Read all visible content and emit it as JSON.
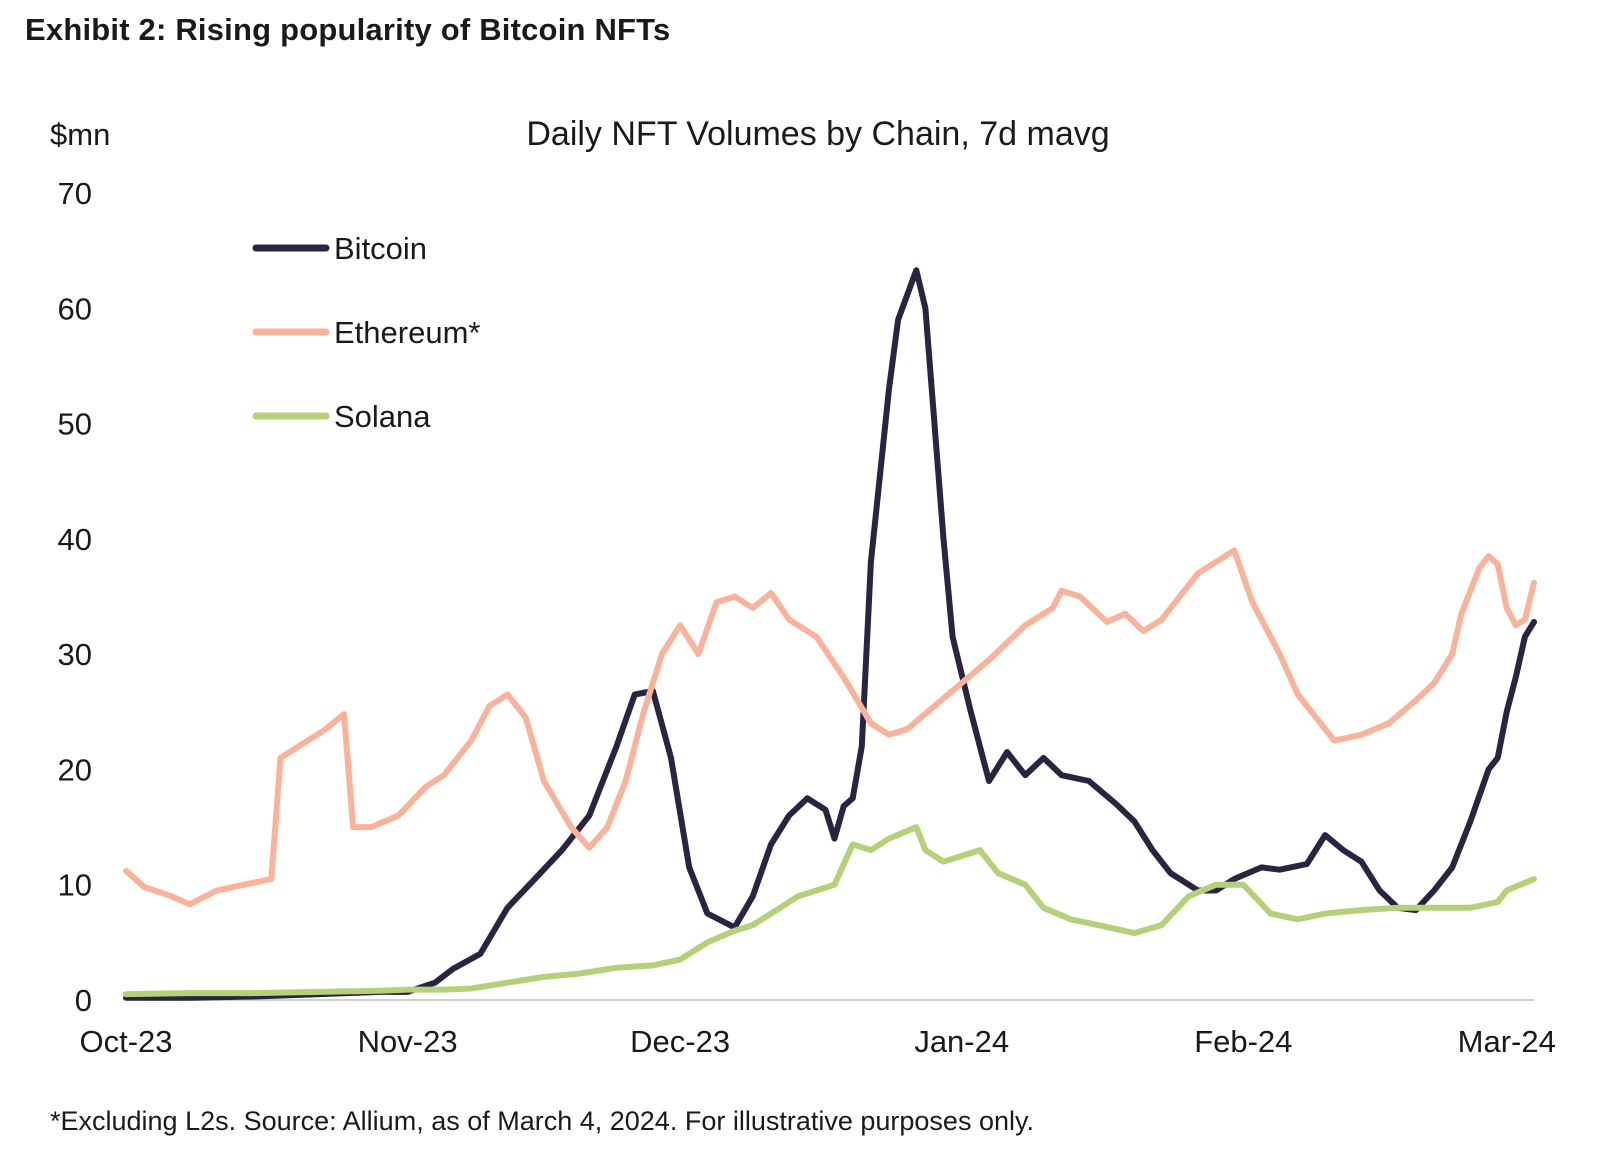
{
  "exhibit_title": "Exhibit 2: Rising popularity of Bitcoin NFTs",
  "footnote": "*Excluding L2s. Source: Allium, as of March 4, 2024. For illustrative purposes only.",
  "chart_data": {
    "type": "line",
    "title": "Daily NFT Volumes by Chain, 7d mavg",
    "ylabel": "$mn",
    "xlabel": "",
    "ylim": [
      0,
      70
    ],
    "yticks": [
      0,
      10,
      20,
      30,
      40,
      50,
      60,
      70
    ],
    "xlim": [
      "2023-10-01",
      "2024-03-04"
    ],
    "xticks": [
      {
        "date": "2023-10-01",
        "label": "Oct-23"
      },
      {
        "date": "2023-11-01",
        "label": "Nov-23"
      },
      {
        "date": "2023-12-01",
        "label": "Dec-23"
      },
      {
        "date": "2024-01-01",
        "label": "Jan-24"
      },
      {
        "date": "2024-02-01",
        "label": "Feb-24"
      },
      {
        "date": "2024-03-01",
        "label": "Mar-24"
      }
    ],
    "grid": false,
    "legend": "top-left",
    "series": [
      {
        "name": "Bitcoin",
        "color": "#2a2440",
        "points": [
          [
            "2023-10-01",
            0.2
          ],
          [
            "2023-10-08",
            0.2
          ],
          [
            "2023-10-15",
            0.3
          ],
          [
            "2023-10-22",
            0.5
          ],
          [
            "2023-10-29",
            0.7
          ],
          [
            "2023-11-01",
            0.7
          ],
          [
            "2023-11-04",
            1.5
          ],
          [
            "2023-11-06",
            2.7
          ],
          [
            "2023-11-09",
            4.0
          ],
          [
            "2023-11-12",
            8.0
          ],
          [
            "2023-11-15",
            10.5
          ],
          [
            "2023-11-18",
            13.0
          ],
          [
            "2023-11-21",
            16.0
          ],
          [
            "2023-11-24",
            22.0
          ],
          [
            "2023-11-26",
            26.5
          ],
          [
            "2023-11-28",
            26.8
          ],
          [
            "2023-11-30",
            21.0
          ],
          [
            "2023-12-02",
            11.5
          ],
          [
            "2023-12-04",
            7.5
          ],
          [
            "2023-12-07",
            6.3
          ],
          [
            "2023-12-09",
            9.0
          ],
          [
            "2023-12-11",
            13.5
          ],
          [
            "2023-12-13",
            16.0
          ],
          [
            "2023-12-15",
            17.5
          ],
          [
            "2023-12-17",
            16.5
          ],
          [
            "2023-12-18",
            14.0
          ],
          [
            "2023-12-19",
            16.8
          ],
          [
            "2023-12-20",
            17.5
          ],
          [
            "2023-12-21",
            22.0
          ],
          [
            "2023-12-22",
            38.0
          ],
          [
            "2023-12-24",
            53.0
          ],
          [
            "2023-12-25",
            59.0
          ],
          [
            "2023-12-27",
            63.3
          ],
          [
            "2023-12-28",
            60.0
          ],
          [
            "2023-12-30",
            40.0
          ],
          [
            "2023-12-31",
            31.5
          ],
          [
            "2024-01-02",
            25.0
          ],
          [
            "2024-01-04",
            19.0
          ],
          [
            "2024-01-06",
            21.5
          ],
          [
            "2024-01-08",
            19.5
          ],
          [
            "2024-01-10",
            21.0
          ],
          [
            "2024-01-12",
            19.5
          ],
          [
            "2024-01-15",
            19.0
          ],
          [
            "2024-01-18",
            17.0
          ],
          [
            "2024-01-20",
            15.5
          ],
          [
            "2024-01-22",
            13.0
          ],
          [
            "2024-01-24",
            11.0
          ],
          [
            "2024-01-27",
            9.5
          ],
          [
            "2024-01-29",
            9.5
          ],
          [
            "2024-01-31",
            10.5
          ],
          [
            "2024-02-03",
            11.5
          ],
          [
            "2024-02-05",
            11.3
          ],
          [
            "2024-02-08",
            11.8
          ],
          [
            "2024-02-10",
            14.3
          ],
          [
            "2024-02-12",
            13.0
          ],
          [
            "2024-02-14",
            12.0
          ],
          [
            "2024-02-16",
            9.5
          ],
          [
            "2024-02-18",
            8.0
          ],
          [
            "2024-02-20",
            7.8
          ],
          [
            "2024-02-22",
            9.5
          ],
          [
            "2024-02-24",
            11.5
          ],
          [
            "2024-02-26",
            15.5
          ],
          [
            "2024-02-28",
            20.0
          ],
          [
            "2024-02-29",
            21.0
          ],
          [
            "2024-03-01",
            25.0
          ],
          [
            "2024-03-02",
            28.0
          ],
          [
            "2024-03-03",
            31.5
          ],
          [
            "2024-03-04",
            32.8
          ]
        ]
      },
      {
        "name": "Ethereum*",
        "color": "#f9b39b",
        "points": [
          [
            "2023-10-01",
            11.2
          ],
          [
            "2023-10-03",
            9.8
          ],
          [
            "2023-10-06",
            9.0
          ],
          [
            "2023-10-08",
            8.3
          ],
          [
            "2023-10-11",
            9.5
          ],
          [
            "2023-10-14",
            10.0
          ],
          [
            "2023-10-17",
            10.5
          ],
          [
            "2023-10-18",
            21.0
          ],
          [
            "2023-10-20",
            22.0
          ],
          [
            "2023-10-23",
            23.5
          ],
          [
            "2023-10-25",
            24.8
          ],
          [
            "2023-10-26",
            15.0
          ],
          [
            "2023-10-28",
            15.0
          ],
          [
            "2023-10-31",
            16.0
          ],
          [
            "2023-11-03",
            18.5
          ],
          [
            "2023-11-05",
            19.5
          ],
          [
            "2023-11-08",
            22.5
          ],
          [
            "2023-11-10",
            25.5
          ],
          [
            "2023-11-12",
            26.5
          ],
          [
            "2023-11-14",
            24.5
          ],
          [
            "2023-11-16",
            19.0
          ],
          [
            "2023-11-19",
            15.0
          ],
          [
            "2023-11-21",
            13.2
          ],
          [
            "2023-11-23",
            15.0
          ],
          [
            "2023-11-25",
            19.0
          ],
          [
            "2023-11-27",
            25.0
          ],
          [
            "2023-11-29",
            30.0
          ],
          [
            "2023-12-01",
            32.5
          ],
          [
            "2023-12-03",
            30.0
          ],
          [
            "2023-12-05",
            34.5
          ],
          [
            "2023-12-07",
            35.0
          ],
          [
            "2023-12-09",
            34.0
          ],
          [
            "2023-12-11",
            35.3
          ],
          [
            "2023-12-13",
            33.0
          ],
          [
            "2023-12-16",
            31.5
          ],
          [
            "2023-12-19",
            28.0
          ],
          [
            "2023-12-22",
            24.0
          ],
          [
            "2023-12-24",
            23.0
          ],
          [
            "2023-12-26",
            23.5
          ],
          [
            "2023-12-29",
            25.5
          ],
          [
            "2024-01-01",
            27.5
          ],
          [
            "2024-01-04",
            29.5
          ],
          [
            "2024-01-06",
            31.0
          ],
          [
            "2024-01-08",
            32.5
          ],
          [
            "2024-01-11",
            34.0
          ],
          [
            "2024-01-12",
            35.5
          ],
          [
            "2024-01-14",
            35.0
          ],
          [
            "2024-01-17",
            32.8
          ],
          [
            "2024-01-19",
            33.5
          ],
          [
            "2024-01-21",
            32.0
          ],
          [
            "2024-01-23",
            33.0
          ],
          [
            "2024-01-25",
            35.0
          ],
          [
            "2024-01-27",
            37.0
          ],
          [
            "2024-01-29",
            38.0
          ],
          [
            "2024-01-31",
            39.0
          ],
          [
            "2024-02-02",
            34.5
          ],
          [
            "2024-02-05",
            30.0
          ],
          [
            "2024-02-07",
            26.5
          ],
          [
            "2024-02-09",
            24.5
          ],
          [
            "2024-02-11",
            22.5
          ],
          [
            "2024-02-14",
            23.0
          ],
          [
            "2024-02-17",
            24.0
          ],
          [
            "2024-02-20",
            26.0
          ],
          [
            "2024-02-22",
            27.5
          ],
          [
            "2024-02-24",
            30.0
          ],
          [
            "2024-02-25",
            33.5
          ],
          [
            "2024-02-26",
            35.5
          ],
          [
            "2024-02-27",
            37.5
          ],
          [
            "2024-02-28",
            38.5
          ],
          [
            "2024-02-29",
            37.8
          ],
          [
            "2024-03-01",
            34.0
          ],
          [
            "2024-03-02",
            32.5
          ],
          [
            "2024-03-03",
            33.0
          ],
          [
            "2024-03-04",
            36.2
          ]
        ]
      },
      {
        "name": "Solana",
        "color": "#b4d17a",
        "points": [
          [
            "2023-10-01",
            0.5
          ],
          [
            "2023-10-08",
            0.6
          ],
          [
            "2023-10-15",
            0.6
          ],
          [
            "2023-10-22",
            0.7
          ],
          [
            "2023-10-29",
            0.8
          ],
          [
            "2023-11-01",
            0.9
          ],
          [
            "2023-11-05",
            0.9
          ],
          [
            "2023-11-08",
            1.0
          ],
          [
            "2023-11-12",
            1.5
          ],
          [
            "2023-11-16",
            2.0
          ],
          [
            "2023-11-20",
            2.3
          ],
          [
            "2023-11-24",
            2.8
          ],
          [
            "2023-11-28",
            3.0
          ],
          [
            "2023-12-01",
            3.5
          ],
          [
            "2023-12-04",
            5.0
          ],
          [
            "2023-12-07",
            6.0
          ],
          [
            "2023-12-09",
            6.5
          ],
          [
            "2023-12-12",
            8.0
          ],
          [
            "2023-12-14",
            9.0
          ],
          [
            "2023-12-16",
            9.5
          ],
          [
            "2023-12-18",
            10.0
          ],
          [
            "2023-12-20",
            13.5
          ],
          [
            "2023-12-22",
            13.0
          ],
          [
            "2023-12-24",
            14.0
          ],
          [
            "2023-12-27",
            15.0
          ],
          [
            "2023-12-28",
            13.0
          ],
          [
            "2023-12-30",
            12.0
          ],
          [
            "2024-01-01",
            12.5
          ],
          [
            "2024-01-03",
            13.0
          ],
          [
            "2024-01-05",
            11.0
          ],
          [
            "2024-01-08",
            10.0
          ],
          [
            "2024-01-10",
            8.0
          ],
          [
            "2024-01-13",
            7.0
          ],
          [
            "2024-01-16",
            6.5
          ],
          [
            "2024-01-20",
            5.8
          ],
          [
            "2024-01-23",
            6.5
          ],
          [
            "2024-01-26",
            9.0
          ],
          [
            "2024-01-29",
            10.0
          ],
          [
            "2024-02-01",
            10.0
          ],
          [
            "2024-02-04",
            7.5
          ],
          [
            "2024-02-07",
            7.0
          ],
          [
            "2024-02-10",
            7.5
          ],
          [
            "2024-02-14",
            7.8
          ],
          [
            "2024-02-18",
            8.0
          ],
          [
            "2024-02-22",
            8.0
          ],
          [
            "2024-02-26",
            8.0
          ],
          [
            "2024-02-29",
            8.5
          ],
          [
            "2024-03-01",
            9.5
          ],
          [
            "2024-03-04",
            10.5
          ]
        ]
      }
    ]
  }
}
